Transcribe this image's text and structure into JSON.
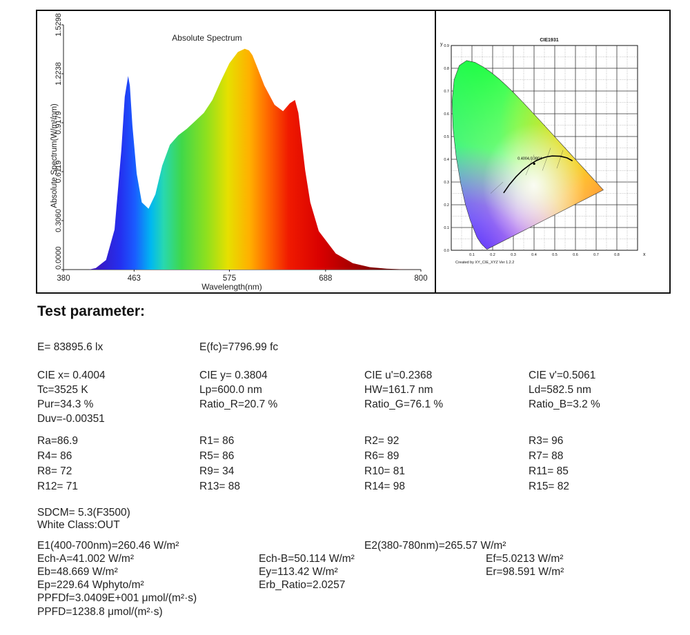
{
  "spectrum_chart": {
    "title": "Absolute Spectrum",
    "xlabel": "Wavelength(nm)",
    "ylabel": "Absolute Spectrum(W/m²/nm)",
    "x_ticks": [
      "380",
      "463",
      "575",
      "688",
      "800"
    ],
    "y_ticks": [
      "0.0000",
      "0.3060",
      "0.6119",
      "0.9179",
      "1.2238",
      "1.5298"
    ]
  },
  "cie_chart": {
    "title": "CIE1931",
    "axis_y_label": "y",
    "axis_x_label": "x",
    "y_ticks": [
      "0.9",
      "0.8",
      "0.7",
      "0.6",
      "0.5",
      "0.4",
      "0.3",
      "0.2",
      "0.1",
      "0.0"
    ],
    "x_ticks": [
      "0.1",
      "0.2",
      "0.3",
      "0.4",
      "0.5",
      "0.6",
      "0.7",
      "0.8"
    ],
    "point_label": "0.4004,0.3804",
    "footer": "Created by XY_CIE_XYZ Ver 1.2.2"
  },
  "chart_data": {
    "type": "area",
    "title": "Absolute Spectrum",
    "xlabel": "Wavelength(nm)",
    "ylabel": "Absolute Spectrum(W/m²/nm)",
    "xlim": [
      380,
      800
    ],
    "ylim": [
      0,
      1.5298
    ],
    "x": [
      380,
      410,
      418,
      430,
      440,
      448,
      452,
      456,
      458,
      461,
      466,
      472,
      480,
      488,
      496,
      505,
      515,
      525,
      535,
      545,
      555,
      565,
      575,
      585,
      593,
      598,
      602,
      608,
      616,
      628,
      638,
      646,
      652,
      656,
      664,
      670,
      680,
      700,
      720,
      740,
      760,
      780,
      800
    ],
    "series": [
      {
        "values": [
          0,
          0,
          0.01,
          0.06,
          0.25,
          0.75,
          1.08,
          1.21,
          1.15,
          0.9,
          0.6,
          0.42,
          0.38,
          0.47,
          0.65,
          0.78,
          0.84,
          0.88,
          0.93,
          0.98,
          1.06,
          1.18,
          1.29,
          1.36,
          1.38,
          1.37,
          1.34,
          1.26,
          1.15,
          1.03,
          0.99,
          1.04,
          1.06,
          0.98,
          0.62,
          0.42,
          0.24,
          0.1,
          0.04,
          0.015,
          0.005,
          0.001,
          0
        ]
      }
    ]
  },
  "params": {
    "heading": "Test parameter:",
    "E": "E=  83895.6 lx",
    "E_fc": "E(fc)=7796.99 fc",
    "cie_x": "CIE x= 0.4004",
    "cie_y": "CIE y= 0.3804",
    "cie_u": "CIE u'=0.2368",
    "cie_v": "CIE v'=0.5061",
    "tc": "Tc=3525 K",
    "lp": "Lp=600.0 nm",
    "hw": "HW=161.7 nm",
    "ld": "Ld=582.5 nm",
    "pur": "Pur=34.3 %",
    "ratio_r": "Ratio_R=20.7 %",
    "ratio_g": "Ratio_G=76.1 %",
    "ratio_b": "Ratio_B=3.2 %",
    "duv": "Duv=-0.00351",
    "ra": "Ra=86.9",
    "r1": "R1= 86",
    "r2": "R2= 92",
    "r3": "R3= 96",
    "r4": "R4= 86",
    "r5": "R5= 86",
    "r6": "R6= 89",
    "r7": "R7= 88",
    "r8": "R8= 72",
    "r9": "R9= 34",
    "r10": "R10= 81",
    "r11": "R11= 85",
    "r12": "R12= 71",
    "r13": "R13= 88",
    "r14": "R14= 98",
    "r15": "R15= 82",
    "sdcm": "SDCM= 5.3(F3500)",
    "white_class": "White Class:OUT",
    "e1": "E1(400-700nm)=260.46 W/m²",
    "e2": "E2(380-780nm)=265.57 W/m²",
    "ech_a": "Ech-A=41.002 W/m²",
    "ech_b": "Ech-B=50.114 W/m²",
    "ef": "Ef=5.0213 W/m²",
    "eb": "Eb=48.669 W/m²",
    "ey": "Ey=113.42 W/m²",
    "er": "Er=98.591 W/m²",
    "ep": "Ep=229.64 Wphyto/m²",
    "erb": "Erb_Ratio=2.0257",
    "ppfdf": "PPFDf=3.0409E+001 μmol/(m²·s)",
    "ppfd": "PPFD=1238.8 μmol/(m²·s)"
  }
}
